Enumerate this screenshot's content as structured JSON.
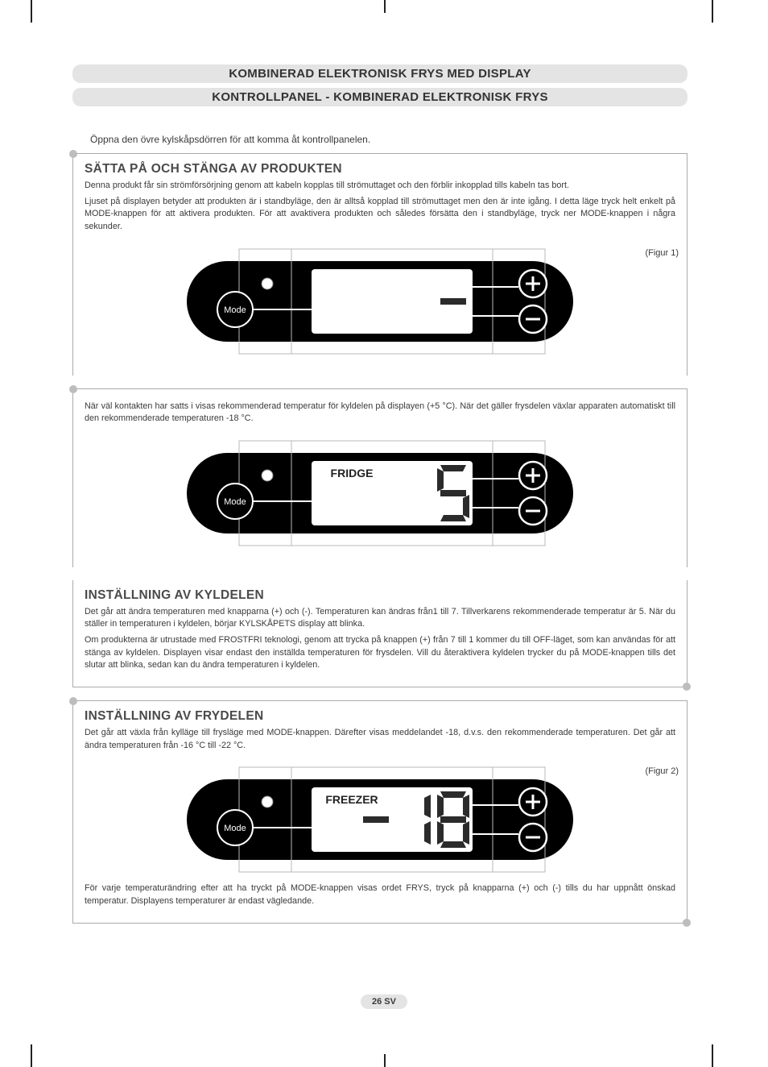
{
  "header": {
    "title1": "KOMBINERAD ELEKTRONISK FRYS MED DISPLAY",
    "title2": "KONTROLLPANEL - KOMBINERAD ELEKTRONISK FRYS"
  },
  "intro": "Öppna den övre kylskåpsdörren för att komma åt kontrollpanelen.",
  "section1": {
    "heading": "SÄTTA PÅ OCH STÄNGA AV PRODUKTEN",
    "p1": "Denna produkt får sin strömförsörjning genom att kabeln kopplas till strömuttaget och den förblir inkopplad tills kabeln tas bort.",
    "p2": "Ljuset på displayen betyder att produkten är i standbyläge, den är alltså kopplad till strömuttaget men den är inte igång. I detta läge tryck helt enkelt på MODE-knappen för att aktivera produkten. För att avaktivera produkten och således försätta den i standbyläge, tryck ner MODE-knappen i några sekunder.",
    "fig_label": "(Figur 1)",
    "panel": {
      "mode_label": "Mode",
      "display_label": "",
      "digits": "-",
      "plus_icon": "+",
      "minus_icon": "−",
      "colors": {
        "body": "#000000",
        "screen": "#ffffff",
        "stroke": "#000000",
        "digit": "#2b2b2b"
      }
    }
  },
  "mid": {
    "p1": "När väl kontakten har satts i visas rekommenderad temperatur för kyldelen på displayen (+5 °C). När det gäller frysdelen växlar apparaten automatiskt till den rekommenderade temperaturen -18 °C.",
    "panel": {
      "mode_label": "Mode",
      "display_label": "FRIDGE",
      "digits": "5",
      "plus_icon": "+",
      "minus_icon": "−",
      "colors": {
        "body": "#000000",
        "screen": "#ffffff",
        "stroke": "#000000",
        "digit": "#2b2b2b"
      }
    }
  },
  "section2": {
    "heading": "INSTÄLLNING AV KYLDELEN",
    "p1": "Det går att ändra temperaturen med knapparna (+) och (-). Temperaturen kan ändras från1 till 7. Tillverkarens rekommenderade temperatur är 5. När du ställer in temperaturen i kyldelen, börjar KYLSKÅPETS display att blinka.",
    "p2": "Om produkterna är utrustade med FROSTFRI teknologi, genom att trycka på knappen (+) från 7 till 1 kommer du till OFF-läget, som kan användas för att stänga av kyldelen. Displayen visar endast den inställda temperaturen för frysdelen. Vill du återaktivera kyldelen trycker du på MODE-knappen tills det slutar att blinka, sedan kan du ändra temperaturen i kyldelen."
  },
  "section3": {
    "heading": "INSTÄLLNING AV FRYDELEN",
    "p1": "Det går att växla från kylläge till frysläge med MODE-knappen. Därefter visas meddelandet -18, d.v.s. den rekommenderade temperaturen. Det går att ändra temperaturen från -16 °C till -22 °C.",
    "fig_label": "(Figur 2)",
    "panel": {
      "mode_label": "Mode",
      "display_label": "FREEZER",
      "digits": "-18",
      "plus_icon": "+",
      "minus_icon": "−",
      "colors": {
        "body": "#000000",
        "screen": "#ffffff",
        "stroke": "#000000",
        "digit": "#2b2b2b"
      }
    },
    "p2": "För varje temperaturändring efter att ha tryckt på MODE-knappen visas ordet FRYS, tryck på knapparna (+) och (-) tills du har uppnått önskad temperatur. Displayens temperaturer är endast vägledande."
  },
  "footer": {
    "page": "26 SV"
  }
}
